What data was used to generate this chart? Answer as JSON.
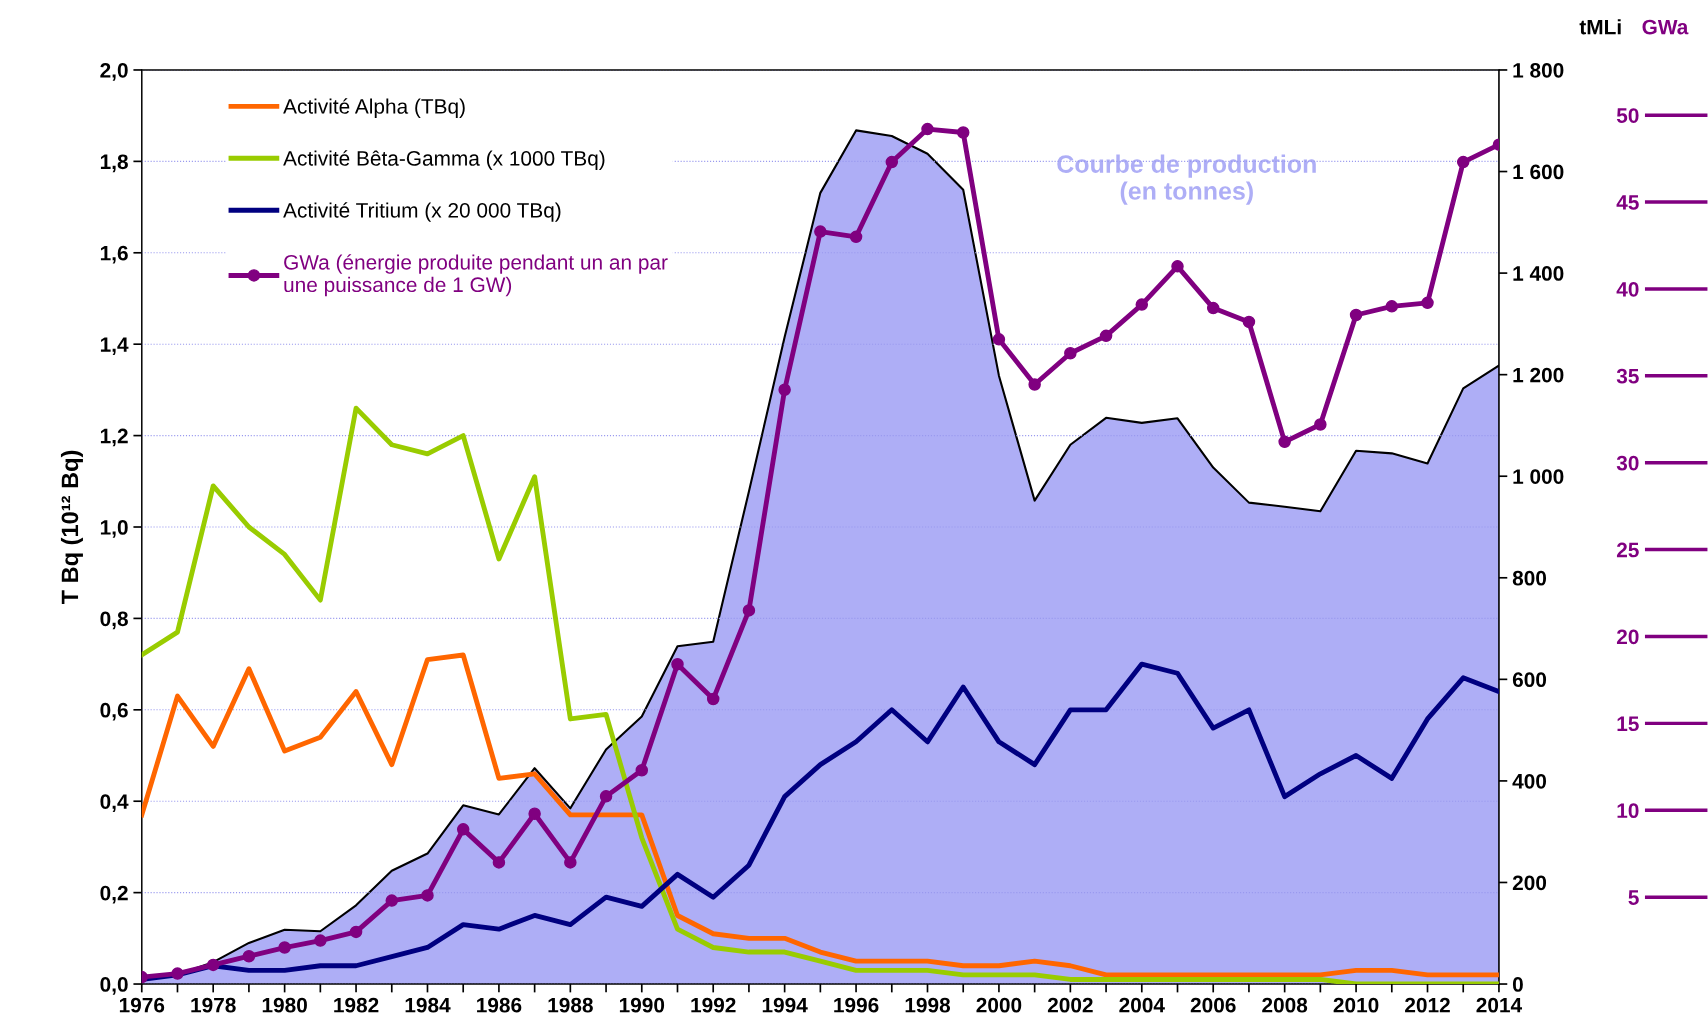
{
  "chart_data": {
    "type": "line",
    "ylabel": "T Bq (10¹² Bq)",
    "y2label": "tMLi",
    "y3label": "GWa",
    "x": [
      1976,
      1977,
      1978,
      1979,
      1980,
      1981,
      1982,
      1983,
      1984,
      1985,
      1986,
      1987,
      1988,
      1989,
      1990,
      1991,
      1992,
      1993,
      1994,
      1995,
      1996,
      1997,
      1998,
      1999,
      2000,
      2001,
      2002,
      2003,
      2004,
      2005,
      2006,
      2007,
      2008,
      2009,
      2010,
      2011,
      2012,
      2013,
      2014
    ],
    "xlim": [
      1976,
      2014
    ],
    "xticks": [
      1976,
      {
        "value": 1977,
        "label": null
      },
      1978,
      {
        "value": 1979,
        "label": null
      },
      1980,
      {
        "value": 1981,
        "label": null
      },
      1982,
      {
        "value": 1983,
        "label": null
      },
      1984,
      {
        "value": 1985,
        "label": null
      },
      1986,
      {
        "value": 1987,
        "label": null
      },
      1988,
      {
        "value": 1989,
        "label": null
      },
      1990,
      {
        "value": 1991,
        "label": null
      },
      1992,
      {
        "value": 1993,
        "label": null
      },
      1994,
      {
        "value": 1995,
        "label": null
      },
      1996,
      {
        "value": 1997,
        "label": null
      },
      1998,
      {
        "value": 1999,
        "label": null
      },
      2000,
      {
        "value": 2001,
        "label": null
      },
      2002,
      {
        "value": 2003,
        "label": null
      },
      2004,
      {
        "value": 2005,
        "label": null
      },
      2006,
      {
        "value": 2007,
        "label": null
      },
      2008,
      {
        "value": 2009,
        "label": null
      },
      2010,
      {
        "value": 2011,
        "label": null
      },
      2012,
      {
        "value": 2013,
        "label": null
      },
      2014
    ],
    "ylim": [
      0,
      2.0
    ],
    "yticks": [
      {
        "value": 0,
        "label": "0,0"
      },
      {
        "value": 0.2,
        "label": "0,2"
      },
      {
        "value": 0.4,
        "label": "0,4"
      },
      {
        "value": 0.6,
        "label": "0,6"
      },
      {
        "value": 0.8,
        "label": "0,8"
      },
      {
        "value": 1.0,
        "label": "1,0"
      },
      {
        "value": 1.2,
        "label": "1,2"
      },
      {
        "value": 1.4,
        "label": "1,4"
      },
      {
        "value": 1.6,
        "label": "1,6"
      },
      {
        "value": 1.8,
        "label": "1,8"
      },
      {
        "value": 2.0,
        "label": "2,0"
      }
    ],
    "y2lim": [
      0,
      1800
    ],
    "y2ticks": [
      0,
      200,
      400,
      600,
      800,
      {
        "value": 1000,
        "label": "1 000"
      },
      {
        "value": 1200,
        "label": "1 200"
      },
      {
        "value": 1400,
        "label": "1 400"
      },
      {
        "value": 1600,
        "label": "1 600"
      },
      {
        "value": 1800,
        "label": "1 800"
      }
    ],
    "y3lim": [
      0,
      52.6
    ],
    "y3ticks": [
      5,
      10,
      15,
      20,
      25,
      30,
      35,
      40,
      45,
      50
    ],
    "grid": "y",
    "legend": "top left",
    "series": [
      {
        "type": "area",
        "axis": "y2",
        "name": "Courbe de production\n(en tonnes)",
        "color": "#aeaef6",
        "values": [
          13,
          19,
          43,
          81,
          107,
          104,
          155,
          223,
          257,
          352,
          334,
          425,
          346,
          462,
          527,
          665,
          674,
          970,
          1274,
          1558,
          1681,
          1670,
          1635,
          1564,
          1198,
          952,
          1062,
          1115,
          1105,
          1114,
          1017,
          948,
          940,
          931,
          1050,
          1045,
          1025,
          1173,
          1218
        ]
      },
      {
        "name": "Activité Alpha (TBq)",
        "color": "#ff6600",
        "values": [
          0.37,
          0.63,
          0.52,
          0.69,
          0.51,
          0.54,
          0.64,
          0.48,
          0.71,
          0.72,
          0.45,
          0.46,
          0.37,
          0.37,
          0.37,
          0.15,
          0.11,
          0.1,
          0.1,
          0.07,
          0.05,
          0.05,
          0.05,
          0.04,
          0.04,
          0.05,
          0.04,
          0.02,
          0.02,
          0.02,
          0.02,
          0.02,
          0.02,
          0.02,
          0.03,
          0.03,
          0.02,
          0.02,
          0.02
        ]
      },
      {
        "name": "Activité Bêta-Gamma (x 1000 TBq)",
        "color": "#99cc00",
        "values": [
          0.72,
          0.77,
          1.09,
          1.0,
          0.94,
          0.84,
          1.26,
          1.18,
          1.16,
          1.2,
          0.93,
          1.11,
          0.58,
          0.59,
          0.32,
          0.12,
          0.08,
          0.07,
          0.07,
          0.05,
          0.03,
          0.03,
          0.03,
          0.02,
          0.02,
          0.02,
          0.01,
          0.01,
          0.01,
          0.01,
          0.01,
          0.01,
          0.01,
          0.01,
          0.0,
          0.0,
          0.0,
          0.0,
          0.0
        ]
      },
      {
        "name": "Activité Tritium (x 20 000 TBq)",
        "color": "#000080",
        "values": [
          0.01,
          0.02,
          0.04,
          0.03,
          0.03,
          0.04,
          0.04,
          0.06,
          0.08,
          0.13,
          0.12,
          0.15,
          0.13,
          0.19,
          0.17,
          0.24,
          0.19,
          0.26,
          0.41,
          0.48,
          0.53,
          0.6,
          0.53,
          0.65,
          0.53,
          0.48,
          0.6,
          0.6,
          0.7,
          0.68,
          0.56,
          0.6,
          0.41,
          0.46,
          0.5,
          0.45,
          0.58,
          0.67,
          0.64
        ]
      },
      {
        "name": "GWa (énergie produite pendant un an par\nune puissance de 1 GW)",
        "color": "#800080",
        "axis": "y3",
        "marker": "circle",
        "values": [
          0.4,
          0.6,
          1.1,
          1.6,
          2.1,
          2.5,
          3.0,
          4.8,
          5.1,
          8.9,
          7.0,
          9.8,
          7.0,
          10.8,
          12.3,
          18.4,
          16.4,
          21.5,
          34.2,
          43.3,
          43.0,
          47.3,
          49.2,
          49.0,
          37.1,
          34.5,
          36.3,
          37.3,
          39.1,
          41.3,
          38.9,
          38.1,
          31.2,
          32.2,
          38.5,
          39.0,
          39.2,
          47.3,
          48.3
        ]
      }
    ]
  }
}
